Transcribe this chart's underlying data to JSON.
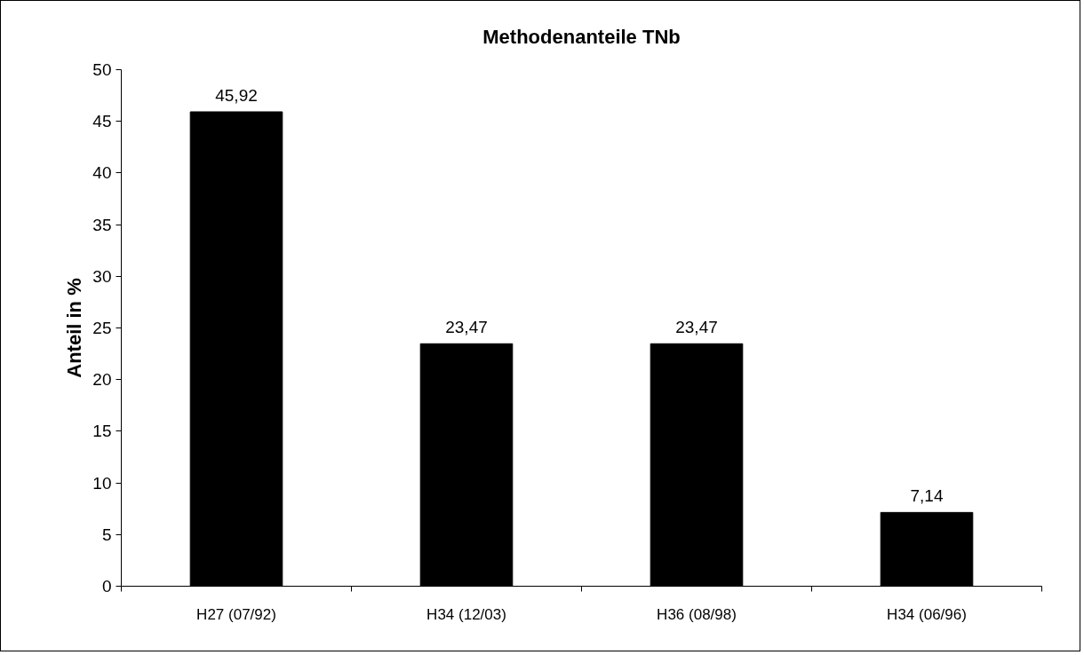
{
  "chart_data": {
    "type": "bar",
    "title": "Methodenanteile TNb",
    "ylabel": "Anteil in %",
    "categories": [
      "H27 (07/92)",
      "H34 (12/03)",
      "H36 (08/98)",
      "H34 (06/96)"
    ],
    "values": [
      45.92,
      23.47,
      23.47,
      7.14
    ],
    "value_labels": [
      "45,92",
      "23,47",
      "23,47",
      "7,14"
    ],
    "color": "#000000",
    "ylim": [
      0,
      50
    ],
    "yticks": [
      0,
      5,
      10,
      15,
      20,
      25,
      30,
      35,
      40,
      45,
      50
    ],
    "grid": false
  }
}
